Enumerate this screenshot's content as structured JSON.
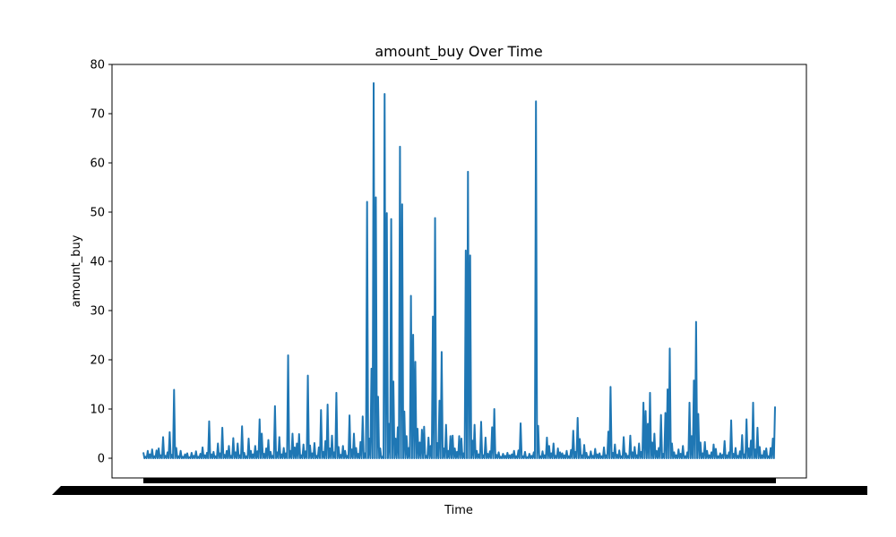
{
  "chart_data": {
    "type": "line",
    "title": "amount_buy Over Time",
    "xlabel": "Time",
    "ylabel": "amount_buy",
    "ylim": [
      -4,
      80
    ],
    "yticks": [
      0,
      10,
      20,
      30,
      40,
      50,
      60,
      70,
      80
    ],
    "grid": false,
    "legend": "none",
    "x_tick_labels_note": "",
    "series": [
      {
        "color": "#1f77b4",
        "values": [
          1.2,
          0.3,
          1.5,
          0.8,
          1.8,
          0.4,
          1.6,
          2.0,
          0.6,
          4.3,
          0.5,
          1.2,
          5.3,
          0.7,
          13.9,
          2.1,
          0.4,
          1.5,
          0.3,
          0.8,
          1.0,
          0.2,
          1.1,
          0.5,
          1.4,
          0.3,
          0.9,
          2.2,
          0.6,
          1.1,
          7.5,
          0.8,
          1.3,
          0.4,
          3.0,
          1.0,
          6.2,
          0.7,
          1.5,
          2.5,
          0.5,
          4.1,
          1.2,
          3.0,
          0.6,
          6.5,
          1.1,
          0.4,
          4.0,
          1.5,
          0.8,
          2.5,
          1.4,
          7.9,
          5.0,
          0.9,
          2.0,
          3.7,
          1.3,
          0.5,
          10.6,
          1.2,
          4.3,
          0.8,
          2.1,
          1.0,
          20.9,
          1.5,
          5.0,
          2.2,
          3.0,
          4.9,
          0.6,
          2.8,
          1.4,
          16.8,
          2.6,
          1.0,
          3.1,
          0.5,
          2.2,
          9.8,
          1.3,
          3.5,
          10.9,
          2.0,
          4.6,
          1.2,
          13.3,
          2.3,
          0.7,
          2.5,
          1.5,
          0.5,
          8.7,
          1.8,
          5.0,
          2.1,
          0.9,
          3.3,
          8.5,
          1.0,
          52.1,
          4.0,
          18.2,
          76.2,
          53.0,
          12.5,
          2.0,
          0.3,
          74.0,
          49.8,
          7.0,
          48.6,
          15.6,
          4.0,
          6.3,
          63.3,
          51.6,
          9.5,
          4.5,
          2.1,
          33.0,
          25.1,
          19.6,
          6.0,
          3.2,
          5.8,
          6.4,
          0.5,
          4.2,
          2.5,
          28.8,
          48.8,
          3.1,
          11.7,
          21.6,
          2.0,
          6.8,
          1.5,
          4.5,
          4.6,
          2.0,
          1.3,
          4.5,
          4.0,
          1.0,
          42.2,
          58.2,
          41.2,
          3.6,
          6.8,
          1.5,
          0.8,
          7.4,
          0.6,
          4.2,
          0.9,
          1.4,
          6.3,
          10.0,
          0.7,
          1.2,
          0.3,
          0.9,
          0.5,
          1.1,
          0.6,
          0.8,
          1.5,
          0.4,
          1.6,
          7.1,
          0.4,
          1.3,
          0.2,
          0.9,
          0.5,
          1.2,
          72.5,
          6.6,
          0.4,
          1.4,
          0.6,
          4.2,
          2.5,
          1.0,
          3.0,
          0.5,
          2.0,
          1.2,
          1.0,
          0.6,
          1.5,
          0.4,
          1.7,
          5.6,
          1.3,
          8.2,
          3.9,
          0.6,
          2.7,
          1.1,
          0.3,
          1.4,
          0.5,
          1.9,
          0.8,
          1.0,
          0.4,
          2.2,
          0.6,
          5.4,
          14.5,
          1.1,
          2.8,
          0.7,
          1.6,
          0.4,
          4.3,
          1.0,
          0.5,
          4.6,
          1.2,
          2.3,
          0.6,
          3.0,
          1.3,
          11.3,
          9.6,
          7.0,
          13.3,
          3.2,
          5.0,
          1.5,
          2.1,
          8.8,
          0.9,
          9.2,
          14.0,
          22.3,
          3.0,
          1.2,
          0.6,
          1.8,
          0.9,
          2.5,
          0.4,
          1.2,
          11.3,
          4.5,
          15.8,
          27.7,
          9.0,
          3.2,
          1.0,
          3.3,
          1.5,
          0.6,
          1.2,
          2.8,
          1.9,
          0.4,
          1.0,
          0.7,
          3.5,
          0.6,
          1.2,
          7.7,
          0.9,
          2.1,
          0.5,
          1.4,
          4.7,
          0.8,
          7.9,
          2.0,
          3.6,
          11.3,
          1.8,
          6.2,
          2.3,
          0.6,
          1.5,
          2.0,
          0.4,
          2.1,
          4.0,
          10.5
        ],
        "baseline_every": 2
      }
    ]
  }
}
